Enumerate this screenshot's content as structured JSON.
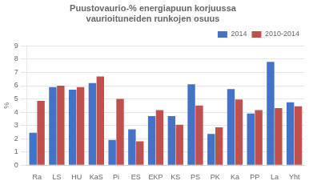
{
  "chart_data": {
    "type": "bar",
    "title": "Puustovaurio-% energiapuun korjuussa\nvaurioituneiden runkojen osuus",
    "categories": [
      "Ra",
      "LS",
      "HU",
      "KaS",
      "Pi",
      "ES",
      "EKP",
      "KS",
      "PS",
      "PK",
      "Ka",
      "PP",
      "La",
      "Yht"
    ],
    "series": [
      {
        "name": "2014",
        "color": "#4472C4",
        "values": [
          2.45,
          5.9,
          5.7,
          6.2,
          1.9,
          2.7,
          3.7,
          3.7,
          6.1,
          2.35,
          5.75,
          3.9,
          7.8,
          4.75
        ]
      },
      {
        "name": "2010-2014",
        "color": "#C0504D",
        "values": [
          4.85,
          6.0,
          5.9,
          6.7,
          5.0,
          1.8,
          4.15,
          3.05,
          4.5,
          2.85,
          4.95,
          4.15,
          4.3,
          4.45
        ]
      }
    ],
    "ylabel": "%",
    "ylim": [
      0,
      9
    ],
    "yticks": [
      0,
      1,
      2,
      3,
      4,
      5,
      6,
      7,
      8,
      9
    ],
    "grid": true,
    "legend": "upper right"
  }
}
